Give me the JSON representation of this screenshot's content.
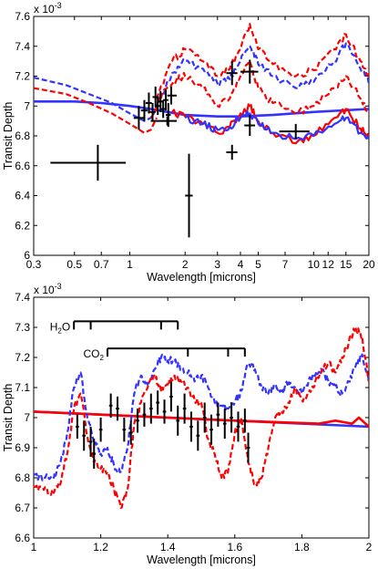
{
  "chart_data": [
    {
      "type": "line",
      "xscale": "log",
      "xlabel": "Wavelength [microns]",
      "ylabel": "Transit Depth",
      "y_exponent_label": "x 10",
      "y_exponent": "-3",
      "xlim": [
        0.3,
        20
      ],
      "ylim": [
        6.0,
        7.6
      ],
      "x_ticks": [
        0.3,
        0.5,
        0.7,
        1,
        2,
        3,
        4,
        5,
        7,
        10,
        12,
        15,
        20
      ],
      "x_tick_labels": [
        "0.3",
        "0.5",
        "0.7",
        "1",
        "2",
        "3",
        "4",
        "5",
        "7",
        "10",
        "12",
        "15",
        "20"
      ],
      "y_ticks": [
        6,
        6.2,
        6.4,
        6.6,
        6.8,
        7,
        7.2,
        7.4,
        7.6
      ],
      "y_tick_labels": [
        "6",
        "6.2",
        "6.4",
        "6.6",
        "6.8",
        "7",
        "7.2",
        "7.4",
        "7.6"
      ],
      "colors": {
        "red": "#ff0000",
        "blue": "#3333ff",
        "black": "#000000"
      },
      "series": [
        {
          "style": "solid",
          "color": "#3333ff",
          "noisy": false,
          "x": [
            0.3,
            0.5,
            0.7,
            1.0,
            1.3,
            1.6,
            2.0,
            3.0,
            4.0,
            6.0,
            10.0,
            20.0
          ],
          "y": [
            7.03,
            7.03,
            7.02,
            7.0,
            6.98,
            6.96,
            6.94,
            6.93,
            6.93,
            6.94,
            6.96,
            6.98
          ]
        },
        {
          "style": "dashed",
          "color": "#3333ff",
          "noisy": false,
          "x": [
            0.3,
            0.45,
            0.6,
            0.8,
            1.0,
            1.2,
            1.3,
            1.4
          ],
          "y": [
            7.19,
            7.14,
            7.08,
            7.02,
            6.95,
            6.9,
            6.92,
            6.98
          ]
        },
        {
          "style": "dashed",
          "color": "#ff0000",
          "noisy": false,
          "x": [
            0.3,
            0.45,
            0.6,
            0.8,
            1.0,
            1.2,
            1.3,
            1.4
          ],
          "y": [
            7.12,
            7.08,
            7.02,
            6.95,
            6.88,
            6.82,
            6.84,
            6.92
          ]
        },
        {
          "style": "dashed",
          "color": "#ff0000",
          "noisy": true,
          "x": [
            1.4,
            1.7,
            2.0,
            2.5,
            3.0,
            3.5,
            4.0,
            4.5,
            5.0,
            6.0,
            8.0,
            10.0,
            13.0,
            15.0,
            18.0,
            20.0
          ],
          "y": [
            7.05,
            7.3,
            7.38,
            7.3,
            7.2,
            7.25,
            7.38,
            7.55,
            7.38,
            7.28,
            7.2,
            7.24,
            7.38,
            7.48,
            7.3,
            7.2
          ]
        },
        {
          "style": "dashed",
          "color": "#3333ff",
          "noisy": true,
          "x": [
            1.4,
            1.7,
            2.0,
            2.5,
            3.0,
            3.5,
            4.0,
            4.5,
            5.0,
            6.0,
            8.0,
            10.0,
            13.0,
            15.0,
            18.0,
            20.0
          ],
          "y": [
            7.0,
            7.22,
            7.3,
            7.25,
            7.15,
            7.18,
            7.3,
            7.4,
            7.28,
            7.2,
            7.12,
            7.16,
            7.3,
            7.42,
            7.25,
            7.15
          ]
        },
        {
          "style": "dashed",
          "color": "#ff0000",
          "noisy": true,
          "x": [
            1.3,
            1.5,
            1.8,
            2.0,
            2.5,
            3.0,
            3.5,
            4.0,
            4.5,
            5.0,
            6.0,
            8.0,
            10.0,
            13.0,
            15.0,
            18.0,
            20.0
          ],
          "y": [
            6.92,
            7.08,
            7.18,
            7.2,
            7.12,
            7.0,
            7.05,
            7.2,
            7.3,
            7.12,
            7.02,
            6.95,
            7.0,
            7.12,
            7.2,
            7.05,
            6.95
          ]
        },
        {
          "style": "solid",
          "color": "#ff0000",
          "noisy": true,
          "x": [
            1.7,
            2.0,
            2.5,
            3.0,
            3.5,
            4.0,
            4.5,
            5.0,
            6.0,
            8.0,
            10.0,
            13.0,
            15.0,
            18.0,
            20.0
          ],
          "y": [
            6.96,
            6.93,
            6.88,
            6.82,
            6.86,
            6.95,
            7.0,
            6.9,
            6.82,
            6.75,
            6.8,
            6.92,
            6.98,
            6.85,
            6.78
          ]
        },
        {
          "style": "solid",
          "color": "#3333ff",
          "noisy": true,
          "x": [
            2.0,
            2.5,
            3.0,
            3.5,
            4.0,
            4.5,
            5.0,
            6.0,
            8.0,
            10.0,
            13.0,
            15.0,
            18.0,
            20.0
          ],
          "y": [
            6.92,
            6.88,
            6.84,
            6.86,
            6.92,
            6.95,
            6.88,
            6.82,
            6.78,
            6.8,
            6.88,
            6.92,
            6.82,
            6.78
          ]
        }
      ],
      "points": [
        {
          "x": 0.67,
          "y": 6.62,
          "xerr": [
            0.37,
            0.95
          ],
          "yerr": 0.12
        },
        {
          "x": 1.12,
          "y": 6.92,
          "xerr": [
            1.05,
            1.2
          ],
          "yerr": 0.08
        },
        {
          "x": 1.2,
          "y": 6.97,
          "xerr": [
            1.15,
            1.25
          ],
          "yerr": 0.07
        },
        {
          "x": 1.27,
          "y": 7.02,
          "xerr": [
            1.22,
            1.32
          ],
          "yerr": 0.07
        },
        {
          "x": 1.33,
          "y": 6.96,
          "xerr": [
            1.28,
            1.38
          ],
          "yerr": 0.06
        },
        {
          "x": 1.38,
          "y": 7.06,
          "xerr": [
            1.33,
            1.43
          ],
          "yerr": 0.07
        },
        {
          "x": 1.42,
          "y": 7.0,
          "xerr": [
            1.37,
            1.47
          ],
          "yerr": 0.06
        },
        {
          "x": 1.47,
          "y": 7.03,
          "xerr": [
            1.42,
            1.52
          ],
          "yerr": 0.07
        },
        {
          "x": 1.52,
          "y": 6.98,
          "xerr": [
            1.47,
            1.57
          ],
          "yerr": 0.06
        },
        {
          "x": 1.57,
          "y": 7.04,
          "xerr": [
            1.52,
            1.62
          ],
          "yerr": 0.07
        },
        {
          "x": 1.62,
          "y": 6.94,
          "xerr": [
            1.57,
            1.67
          ],
          "yerr": 0.08
        },
        {
          "x": 1.68,
          "y": 7.07,
          "xerr": [
            1.6,
            1.8
          ],
          "yerr": 0.06
        },
        {
          "x": 1.6,
          "y": 6.9,
          "xerr": [
            1.3,
            1.8
          ],
          "yerr": 0.03
        },
        {
          "x": 2.1,
          "y": 6.4,
          "xerr": [
            2.0,
            2.2
          ],
          "yerr": 0.28
        },
        {
          "x": 3.6,
          "y": 6.69,
          "xerr": [
            3.35,
            3.85
          ],
          "yerr": 0.05
        },
        {
          "x": 3.6,
          "y": 7.22,
          "xerr": [
            3.35,
            3.85
          ],
          "yerr": 0.08
        },
        {
          "x": 4.5,
          "y": 6.87,
          "xerr": [
            4.2,
            4.8
          ],
          "yerr": 0.07
        },
        {
          "x": 4.5,
          "y": 7.23,
          "xerr": [
            4.0,
            5.0
          ],
          "yerr": 0.08
        },
        {
          "x": 8.0,
          "y": 6.83,
          "xerr": [
            6.5,
            9.5
          ],
          "yerr": 0.05
        }
      ]
    },
    {
      "type": "line",
      "xscale": "linear",
      "xlabel": "Wavelength [microns]",
      "ylabel": "Transit Depth",
      "y_exponent_label": "x 10",
      "y_exponent": "-3",
      "xlim": [
        1,
        2
      ],
      "ylim": [
        6.6,
        7.4
      ],
      "x_ticks": [
        1,
        1.2,
        1.4,
        1.6,
        1.8,
        2
      ],
      "x_tick_labels": [
        "1",
        "1.2",
        "1.4",
        "1.6",
        "1.8",
        "2"
      ],
      "y_ticks": [
        6.6,
        6.7,
        6.8,
        6.9,
        7,
        7.1,
        7.2,
        7.3,
        7.4
      ],
      "y_tick_labels": [
        "6.6",
        "6.7",
        "6.8",
        "6.9",
        "7",
        "7.1",
        "7.2",
        "7.3",
        "7.4"
      ],
      "annotations": [
        {
          "label": "H",
          "sub": "2",
          "tail": "O",
          "y": 7.32,
          "x_start": 1.12,
          "x_end": 1.43,
          "ticks": [
            1.12,
            1.17,
            1.38,
            1.43
          ]
        },
        {
          "label": "CO",
          "sub": "2",
          "tail": "",
          "y": 7.23,
          "x_start": 1.22,
          "x_end": 1.63,
          "ticks": [
            1.22,
            1.46,
            1.58,
            1.63
          ]
        }
      ],
      "series": [
        {
          "style": "solid",
          "color": "#3333ff",
          "noisy": false,
          "x": [
            1.0,
            1.2,
            1.4,
            1.6,
            1.8,
            2.0
          ],
          "y": [
            7.02,
            7.01,
            7.0,
            6.99,
            6.98,
            6.97
          ]
        },
        {
          "style": "solid",
          "color": "#ff0000",
          "noisy": false,
          "x": [
            1.0,
            1.6,
            1.85,
            1.9,
            1.95,
            1.97,
            1.99,
            2.0
          ],
          "y": [
            7.02,
            6.99,
            6.98,
            6.99,
            6.98,
            7.0,
            6.98,
            6.97
          ]
        },
        {
          "style": "dashed",
          "color": "#3333ff",
          "noisy": true,
          "x": [
            1.0,
            1.03,
            1.06,
            1.08,
            1.1,
            1.12,
            1.14,
            1.16,
            1.18,
            1.2,
            1.22,
            1.24,
            1.26,
            1.28,
            1.3,
            1.32,
            1.34,
            1.36,
            1.38,
            1.4,
            1.42,
            1.44,
            1.46,
            1.48,
            1.5,
            1.52,
            1.54,
            1.56,
            1.58,
            1.6,
            1.62,
            1.64,
            1.66,
            1.68,
            1.7,
            1.72,
            1.74,
            1.76,
            1.78,
            1.8,
            1.82,
            1.84,
            1.86,
            1.88,
            1.9,
            1.92,
            1.94,
            1.96,
            1.98,
            2.0
          ],
          "y": [
            6.81,
            6.8,
            6.8,
            6.85,
            6.95,
            7.1,
            7.15,
            7.0,
            6.92,
            6.88,
            6.9,
            6.84,
            6.82,
            6.9,
            7.08,
            7.14,
            7.11,
            7.16,
            7.2,
            7.19,
            7.19,
            7.16,
            7.15,
            7.12,
            7.14,
            7.1,
            7.05,
            7.04,
            7.03,
            7.05,
            7.09,
            7.18,
            7.16,
            7.1,
            7.08,
            7.11,
            7.08,
            7.12,
            7.1,
            7.08,
            7.12,
            7.14,
            7.16,
            7.12,
            7.1,
            7.08,
            7.12,
            7.17,
            7.21,
            7.12
          ]
        },
        {
          "style": "dashed",
          "color": "#ff0000",
          "noisy": true,
          "x": [
            1.0,
            1.03,
            1.06,
            1.08,
            1.1,
            1.12,
            1.14,
            1.16,
            1.18,
            1.2,
            1.22,
            1.24,
            1.26,
            1.28,
            1.3,
            1.32,
            1.34,
            1.36,
            1.38,
            1.4,
            1.42,
            1.44,
            1.46,
            1.48,
            1.5,
            1.52,
            1.54,
            1.56,
            1.58,
            1.6,
            1.62,
            1.64,
            1.66,
            1.68,
            1.7,
            1.72,
            1.74,
            1.76,
            1.78,
            1.8,
            1.82,
            1.84,
            1.86,
            1.88,
            1.9,
            1.92,
            1.94,
            1.96,
            1.98,
            2.0
          ],
          "y": [
            6.77,
            6.76,
            6.75,
            6.78,
            6.88,
            7.03,
            7.08,
            6.94,
            6.85,
            6.83,
            6.82,
            6.76,
            6.7,
            6.76,
            6.98,
            7.05,
            7.1,
            7.14,
            7.09,
            7.11,
            7.14,
            7.12,
            7.1,
            7.06,
            7.05,
            6.93,
            6.88,
            6.8,
            6.82,
            6.95,
            7.0,
            6.85,
            6.78,
            6.8,
            6.9,
            7.0,
            7.02,
            7.05,
            7.1,
            7.06,
            7.08,
            7.12,
            7.16,
            7.18,
            7.15,
            7.2,
            7.25,
            7.3,
            7.27,
            7.12
          ]
        }
      ],
      "points": [
        {
          "x": 1.13,
          "y": 6.97,
          "xerr": [
            1.125,
            1.135
          ],
          "yerr": 0.04
        },
        {
          "x": 1.15,
          "y": 6.94,
          "xerr": [
            1.145,
            1.155
          ],
          "yerr": 0.05
        },
        {
          "x": 1.17,
          "y": 6.92,
          "xerr": [
            1.165,
            1.175
          ],
          "yerr": 0.05
        },
        {
          "x": 1.18,
          "y": 6.88,
          "xerr": [
            1.175,
            1.185
          ],
          "yerr": 0.05
        },
        {
          "x": 1.2,
          "y": 6.96,
          "xerr": [
            1.195,
            1.205
          ],
          "yerr": 0.04
        },
        {
          "x": 1.23,
          "y": 7.04,
          "xerr": [
            1.225,
            1.235
          ],
          "yerr": 0.04
        },
        {
          "x": 1.25,
          "y": 7.03,
          "xerr": [
            1.245,
            1.255
          ],
          "yerr": 0.04
        },
        {
          "x": 1.27,
          "y": 6.96,
          "xerr": [
            1.265,
            1.275
          ],
          "yerr": 0.04
        },
        {
          "x": 1.29,
          "y": 6.95,
          "xerr": [
            1.285,
            1.295
          ],
          "yerr": 0.04
        },
        {
          "x": 1.31,
          "y": 6.99,
          "xerr": [
            1.305,
            1.315
          ],
          "yerr": 0.04
        },
        {
          "x": 1.33,
          "y": 7.01,
          "xerr": [
            1.325,
            1.335
          ],
          "yerr": 0.04
        },
        {
          "x": 1.35,
          "y": 7.03,
          "xerr": [
            1.345,
            1.355
          ],
          "yerr": 0.05
        },
        {
          "x": 1.37,
          "y": 7.05,
          "xerr": [
            1.365,
            1.375
          ],
          "yerr": 0.04
        },
        {
          "x": 1.39,
          "y": 7.02,
          "xerr": [
            1.385,
            1.395
          ],
          "yerr": 0.04
        },
        {
          "x": 1.41,
          "y": 7.07,
          "xerr": [
            1.405,
            1.415
          ],
          "yerr": 0.05
        },
        {
          "x": 1.43,
          "y": 6.99,
          "xerr": [
            1.425,
            1.435
          ],
          "yerr": 0.05
        },
        {
          "x": 1.45,
          "y": 7.03,
          "xerr": [
            1.445,
            1.455
          ],
          "yerr": 0.05
        },
        {
          "x": 1.47,
          "y": 6.97,
          "xerr": [
            1.465,
            1.475
          ],
          "yerr": 0.05
        },
        {
          "x": 1.49,
          "y": 6.94,
          "xerr": [
            1.485,
            1.495
          ],
          "yerr": 0.05
        },
        {
          "x": 1.51,
          "y": 7.0,
          "xerr": [
            1.505,
            1.515
          ],
          "yerr": 0.05
        },
        {
          "x": 1.53,
          "y": 6.96,
          "xerr": [
            1.525,
            1.535
          ],
          "yerr": 0.05
        },
        {
          "x": 1.55,
          "y": 7.01,
          "xerr": [
            1.545,
            1.555
          ],
          "yerr": 0.04
        },
        {
          "x": 1.57,
          "y": 6.98,
          "xerr": [
            1.565,
            1.575
          ],
          "yerr": 0.05
        },
        {
          "x": 1.59,
          "y": 7.0,
          "xerr": [
            1.585,
            1.595
          ],
          "yerr": 0.05
        },
        {
          "x": 1.61,
          "y": 6.97,
          "xerr": [
            1.605,
            1.615
          ],
          "yerr": 0.05
        },
        {
          "x": 1.63,
          "y": 6.99,
          "xerr": [
            1.625,
            1.635
          ],
          "yerr": 0.04
        },
        {
          "x": 1.64,
          "y": 6.9,
          "xerr": [
            1.635,
            1.645
          ],
          "yerr": 0.05
        }
      ]
    }
  ]
}
